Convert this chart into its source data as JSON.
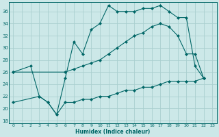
{
  "xlabel": "Humidex (Indice chaleur)",
  "bg_color": "#cce8e8",
  "grid_color": "#aacfcf",
  "line_color": "#006666",
  "xlim": [
    -0.5,
    23.5
  ],
  "ylim": [
    17.5,
    37.5
  ],
  "yticks": [
    18,
    20,
    22,
    24,
    26,
    28,
    30,
    32,
    34,
    36
  ],
  "xticks": [
    0,
    1,
    2,
    3,
    4,
    5,
    6,
    7,
    8,
    9,
    10,
    11,
    12,
    13,
    14,
    15,
    16,
    17,
    18,
    19,
    20,
    21,
    22,
    23
  ],
  "line1_x": [
    0,
    2,
    3,
    4,
    5,
    6,
    7,
    8,
    9,
    10,
    11,
    12,
    13,
    14,
    15,
    16,
    17,
    18,
    19,
    20,
    21,
    22
  ],
  "line1_y": [
    26,
    27,
    22,
    21,
    19,
    25,
    31,
    29,
    33,
    34,
    37,
    36,
    36,
    36,
    36.5,
    36.5,
    37,
    36,
    35,
    35,
    27,
    25
  ],
  "line2_x": [
    0,
    6,
    7,
    8,
    9,
    10,
    11,
    12,
    13,
    14,
    15,
    16,
    17,
    18,
    19,
    20,
    21,
    22
  ],
  "line2_y": [
    26,
    26,
    26.5,
    27,
    27.5,
    28,
    29,
    30,
    31,
    32,
    32.5,
    33.5,
    34,
    33.5,
    32,
    29,
    29,
    25
  ],
  "line3_x": [
    0,
    3,
    4,
    5,
    6,
    7,
    8,
    9,
    10,
    11,
    12,
    13,
    14,
    15,
    16,
    17,
    18,
    19,
    20,
    21,
    22
  ],
  "line3_y": [
    21,
    22,
    21,
    19,
    21,
    21,
    21.5,
    21.5,
    22,
    22,
    22.5,
    23,
    23,
    23.5,
    23.5,
    24,
    24.5,
    24.5,
    24.5,
    24.5,
    25
  ]
}
